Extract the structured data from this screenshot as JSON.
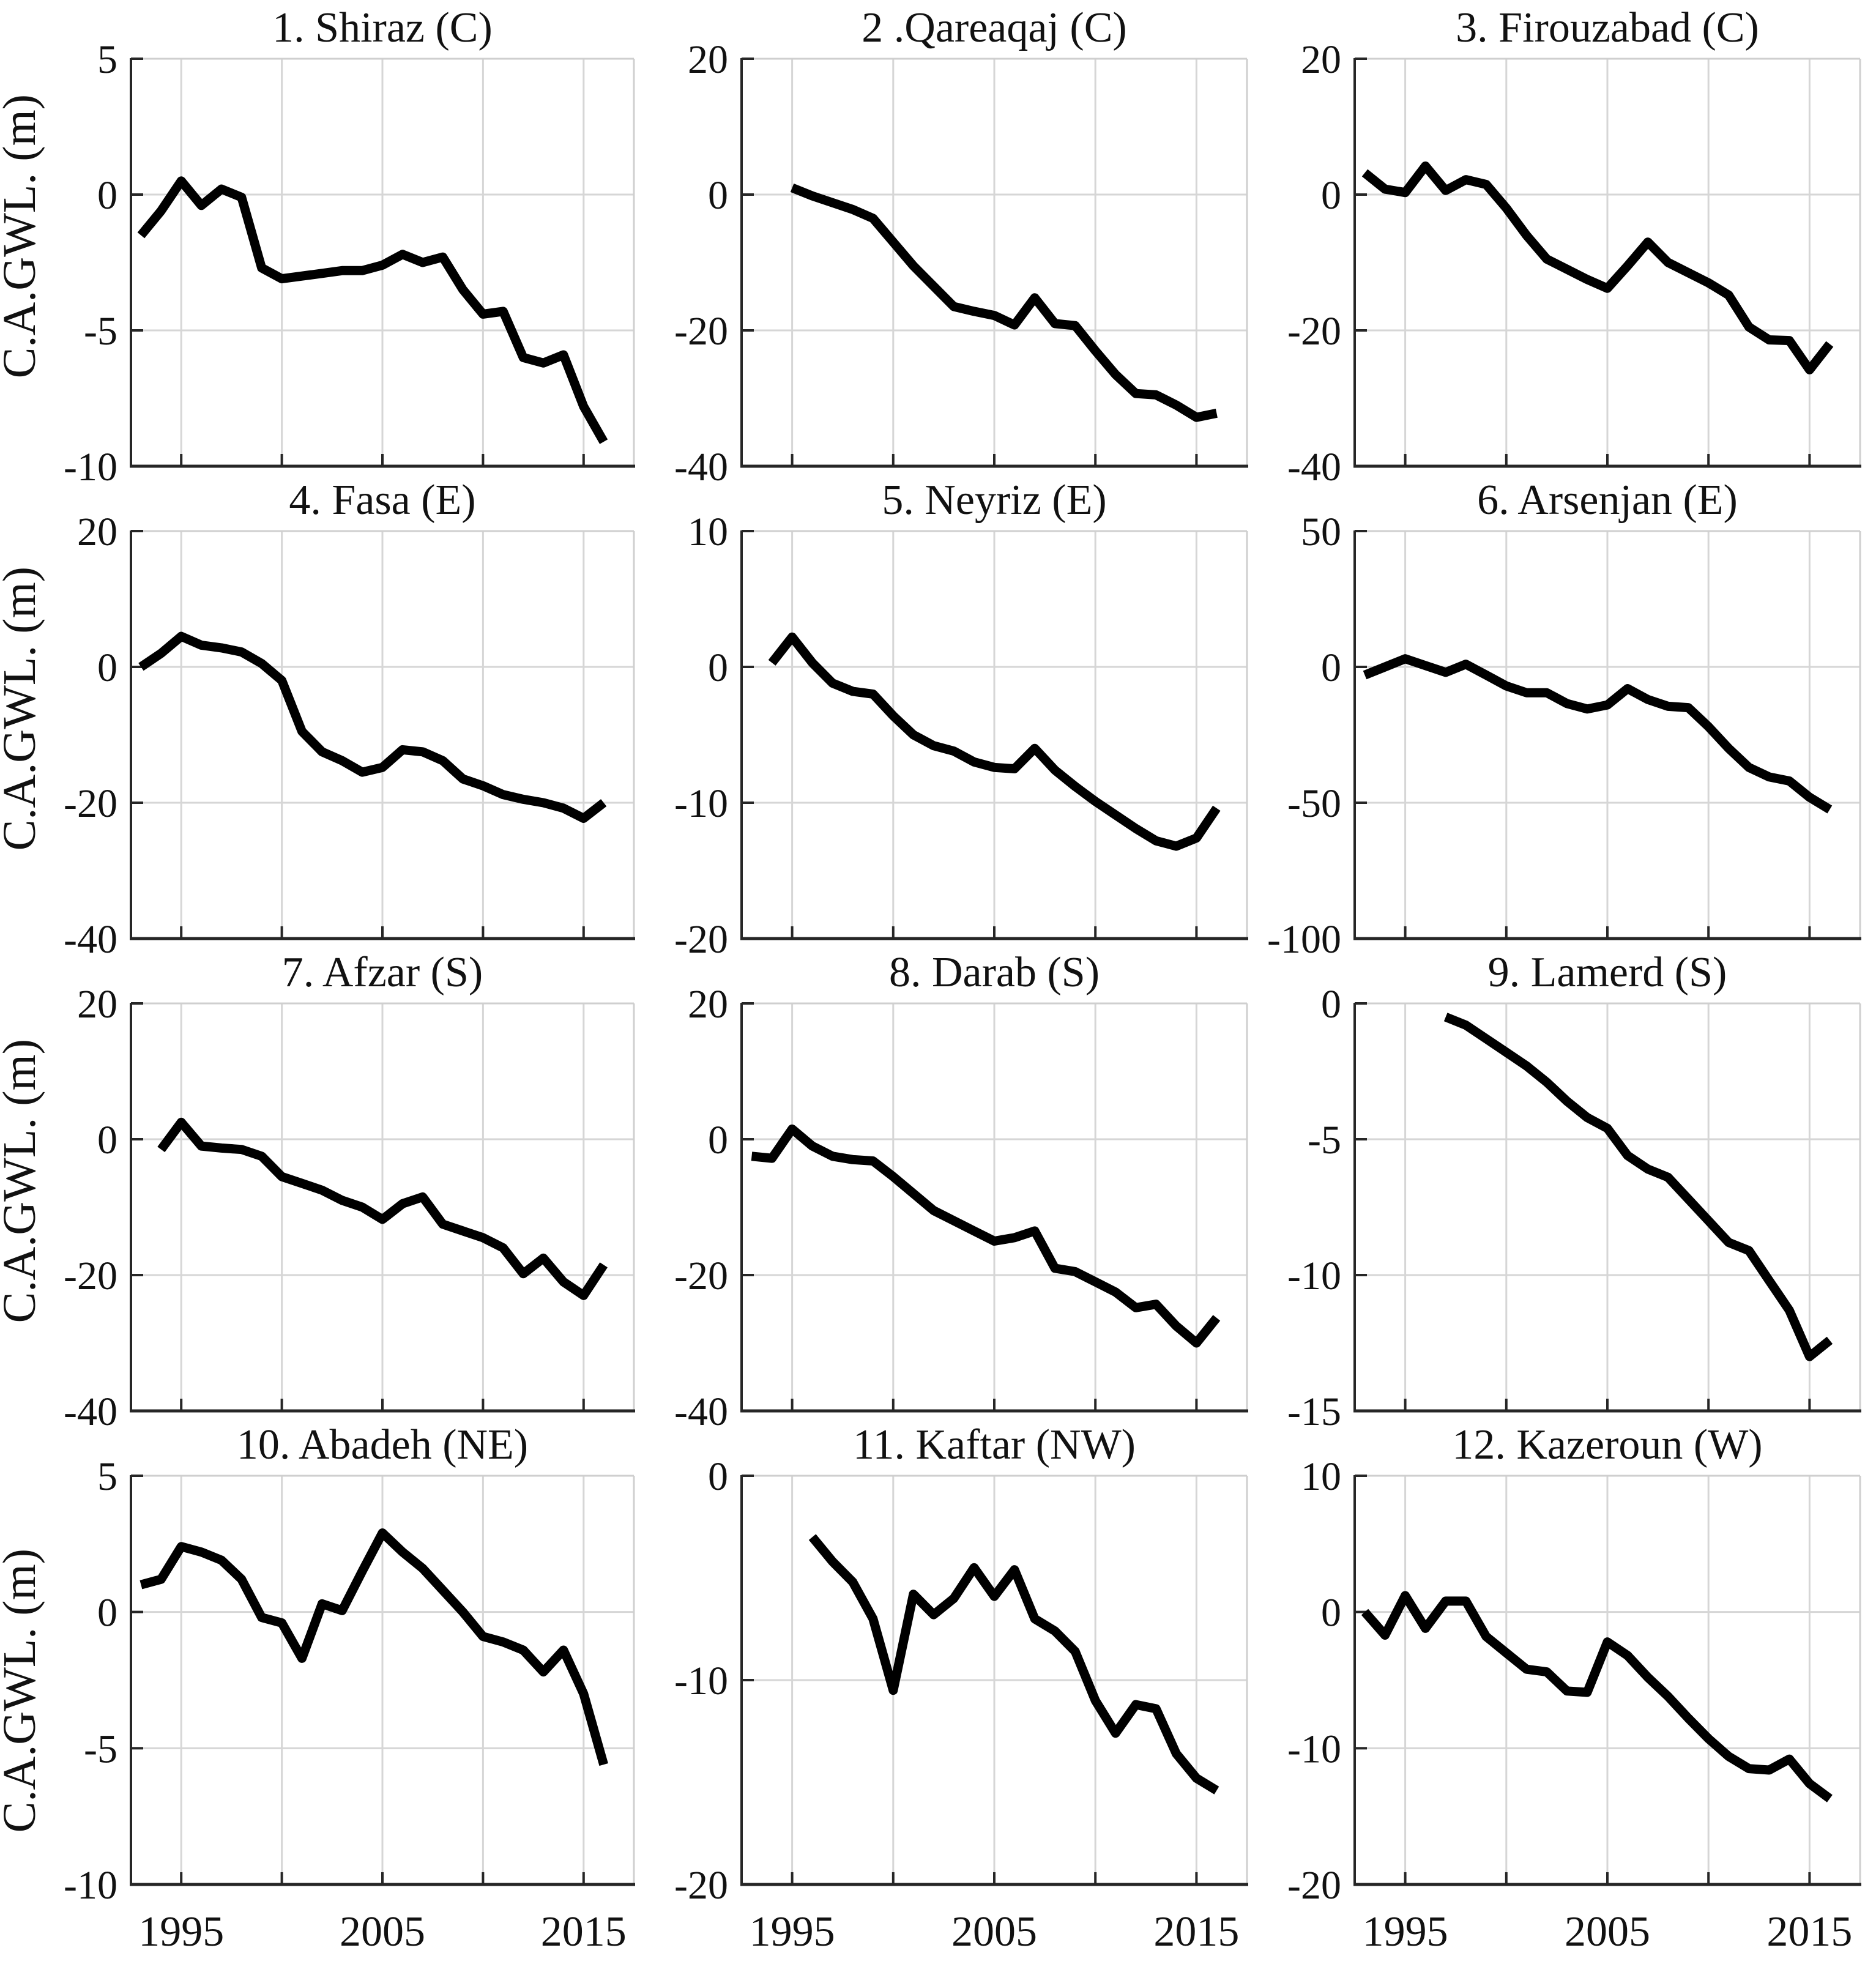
{
  "figure": {
    "ylabel": "C.A.GWL. (m)",
    "x_ticks": {
      "years": [
        1995,
        2005,
        2015
      ],
      "labels": [
        "1995",
        "2005",
        "2015"
      ]
    },
    "grid_years": [
      1995,
      2000,
      2005,
      2010,
      2015
    ],
    "xlim": [
      1992.5,
      2017.5
    ],
    "grid_on": true,
    "colors": {
      "line": "#000000",
      "grid": "#d6d6d6",
      "axis": "#262626",
      "light_spine": "#cfcfcf",
      "text": "#111111",
      "background": "#ffffff"
    }
  },
  "chart_data": [
    {
      "type": "line",
      "title": "1. Shiraz (C)",
      "region": "Shiraz",
      "zone": "C",
      "ylim": [
        -10,
        5
      ],
      "yticks": [
        5,
        0,
        -5,
        -10
      ],
      "show_ylabel": true,
      "show_xticklabels": false,
      "x": [
        1993,
        1994,
        1995,
        1996,
        1997,
        1998,
        1999,
        2000,
        2001,
        2002,
        2003,
        2004,
        2005,
        2006,
        2007,
        2008,
        2009,
        2010,
        2011,
        2012,
        2013,
        2014,
        2015,
        2016
      ],
      "y": [
        -1.5,
        -0.6,
        0.5,
        -0.4,
        0.2,
        -0.1,
        -2.7,
        -3.1,
        -3.0,
        -2.9,
        -2.8,
        -2.8,
        -2.6,
        -2.2,
        -2.5,
        -2.3,
        -3.5,
        -4.4,
        -4.3,
        -6.0,
        -6.2,
        -5.9,
        -7.8,
        -9.1
      ]
    },
    {
      "type": "line",
      "title": "2 .Qareaqaj (C)",
      "region": "Qareaqaj",
      "zone": "C",
      "ylim": [
        -40,
        20
      ],
      "yticks": [
        20,
        0,
        -20,
        -40
      ],
      "show_ylabel": false,
      "show_xticklabels": false,
      "x": [
        1995,
        1996,
        1997,
        1998,
        1999,
        2000,
        2001,
        2002,
        2003,
        2004,
        2005,
        2006,
        2007,
        2008,
        2009,
        2010,
        2011,
        2012,
        2013,
        2014,
        2015,
        2016
      ],
      "y": [
        1.0,
        -0.2,
        -1.2,
        -2.2,
        -3.5,
        -7.0,
        -10.5,
        -13.5,
        -16.5,
        -17.2,
        -17.8,
        -19.2,
        -15.2,
        -19.0,
        -19.3,
        -23.0,
        -26.5,
        -29.3,
        -29.5,
        -31.0,
        -32.8,
        -32.2
      ]
    },
    {
      "type": "line",
      "title": "3. Firouzabad (C)",
      "region": "Firouzabad",
      "zone": "C",
      "ylim": [
        -40,
        20
      ],
      "yticks": [
        20,
        0,
        -20,
        -40
      ],
      "show_ylabel": false,
      "show_xticklabels": false,
      "x": [
        1993,
        1994,
        1995,
        1996,
        1997,
        1998,
        1999,
        2000,
        2001,
        2002,
        2003,
        2004,
        2005,
        2006,
        2007,
        2008,
        2009,
        2010,
        2011,
        2012,
        2013,
        2014,
        2015,
        2016
      ],
      "y": [
        3.2,
        0.8,
        0.3,
        4.2,
        0.6,
        2.2,
        1.5,
        -2.0,
        -6.0,
        -9.5,
        -11.0,
        -12.5,
        -13.8,
        -10.5,
        -7.0,
        -10.0,
        -11.5,
        -13.0,
        -14.8,
        -19.5,
        -21.4,
        -21.5,
        -25.8,
        -22.0
      ]
    },
    {
      "type": "line",
      "title": "4. Fasa (E)",
      "region": "Fasa",
      "zone": "E",
      "ylim": [
        -40,
        20
      ],
      "yticks": [
        20,
        0,
        -20,
        -40
      ],
      "show_ylabel": true,
      "show_xticklabels": false,
      "x": [
        1993,
        1994,
        1995,
        1996,
        1997,
        1998,
        1999,
        2000,
        2001,
        2002,
        2003,
        2004,
        2005,
        2006,
        2007,
        2008,
        2009,
        2010,
        2011,
        2012,
        2013,
        2014,
        2015,
        2016
      ],
      "y": [
        0.0,
        2.0,
        4.5,
        3.2,
        2.8,
        2.2,
        0.5,
        -2.0,
        -9.5,
        -12.5,
        -13.8,
        -15.5,
        -14.8,
        -12.2,
        -12.5,
        -13.8,
        -16.5,
        -17.5,
        -18.8,
        -19.5,
        -20.0,
        -20.8,
        -22.3,
        -20.0
      ]
    },
    {
      "type": "line",
      "title": "5. Neyriz (E)",
      "region": "Neyriz",
      "zone": "E",
      "ylim": [
        -20,
        10
      ],
      "yticks": [
        10,
        0,
        -10,
        -20
      ],
      "show_ylabel": false,
      "show_xticklabels": false,
      "x": [
        1994,
        1995,
        1996,
        1997,
        1998,
        1999,
        2000,
        2001,
        2002,
        2003,
        2004,
        2005,
        2006,
        2007,
        2008,
        2009,
        2010,
        2011,
        2012,
        2013,
        2014,
        2015,
        2016
      ],
      "y": [
        0.3,
        2.2,
        0.3,
        -1.2,
        -1.8,
        -2.0,
        -3.6,
        -5.0,
        -5.8,
        -6.2,
        -7.0,
        -7.4,
        -7.5,
        -6.0,
        -7.6,
        -8.8,
        -9.9,
        -10.9,
        -11.9,
        -12.8,
        -13.2,
        -12.6,
        -10.4
      ]
    },
    {
      "type": "line",
      "title": "6. Arsenjan (E)",
      "region": "Arsenjan",
      "zone": "E",
      "ylim": [
        -100,
        50
      ],
      "yticks": [
        50,
        0,
        -50,
        -100
      ],
      "show_ylabel": false,
      "show_xticklabels": false,
      "x": [
        1993,
        1994,
        1995,
        1996,
        1997,
        1998,
        1999,
        2000,
        2001,
        2002,
        2003,
        2004,
        2005,
        2006,
        2007,
        2008,
        2009,
        2010,
        2011,
        2012,
        2013,
        2014,
        2015,
        2016
      ],
      "y": [
        -3.0,
        0.0,
        3.0,
        0.5,
        -2.0,
        1.0,
        -3.0,
        -7.0,
        -9.5,
        -9.5,
        -13.5,
        -15.5,
        -14.0,
        -8.0,
        -12.0,
        -14.5,
        -15.0,
        -22.0,
        -30.0,
        -37.0,
        -40.5,
        -42.0,
        -48.0,
        -52.5
      ]
    },
    {
      "type": "line",
      "title": "7. Afzar (S)",
      "region": "Afzar",
      "zone": "S",
      "ylim": [
        -40,
        20
      ],
      "yticks": [
        20,
        0,
        -20,
        -40
      ],
      "show_ylabel": true,
      "show_xticklabels": false,
      "x": [
        1994,
        1995,
        1996,
        1997,
        1998,
        1999,
        2000,
        2001,
        2002,
        2003,
        2004,
        2005,
        2006,
        2007,
        2008,
        2009,
        2010,
        2011,
        2012,
        2013,
        2014,
        2015,
        2016
      ],
      "y": [
        -1.5,
        2.5,
        -1.0,
        -1.3,
        -1.5,
        -2.5,
        -5.5,
        -6.5,
        -7.5,
        -9.0,
        -10.0,
        -11.8,
        -9.5,
        -8.5,
        -12.5,
        -13.5,
        -14.5,
        -16.0,
        -19.8,
        -17.5,
        -21.0,
        -23.0,
        -18.5
      ]
    },
    {
      "type": "line",
      "title": "8. Darab (S)",
      "region": "Darab",
      "zone": "S",
      "ylim": [
        -40,
        20
      ],
      "yticks": [
        20,
        0,
        -20,
        -40
      ],
      "show_ylabel": false,
      "show_xticklabels": false,
      "x": [
        1993,
        1994,
        1995,
        1996,
        1997,
        1998,
        1999,
        2000,
        2001,
        2002,
        2003,
        2004,
        2005,
        2006,
        2007,
        2008,
        2009,
        2010,
        2011,
        2012,
        2013,
        2014,
        2015,
        2016
      ],
      "y": [
        -2.5,
        -2.8,
        1.5,
        -1.0,
        -2.5,
        -3.0,
        -3.2,
        -5.5,
        -8.0,
        -10.5,
        -12.0,
        -13.5,
        -15.0,
        -14.5,
        -13.5,
        -19.0,
        -19.5,
        -21.0,
        -22.5,
        -24.8,
        -24.3,
        -27.5,
        -30.0,
        -26.3
      ]
    },
    {
      "type": "line",
      "title": "9. Lamerd (S)",
      "region": "Lamerd",
      "zone": "S",
      "ylim": [
        -15,
        0
      ],
      "yticks": [
        0,
        -5,
        -10,
        -15
      ],
      "show_ylabel": false,
      "show_xticklabels": false,
      "x": [
        1997,
        1998,
        1999,
        2000,
        2001,
        2002,
        2003,
        2004,
        2005,
        2006,
        2007,
        2008,
        2009,
        2010,
        2011,
        2012,
        2013,
        2014,
        2015,
        2016
      ],
      "y": [
        -0.5,
        -0.8,
        -1.3,
        -1.8,
        -2.3,
        -2.9,
        -3.6,
        -4.2,
        -4.6,
        -5.6,
        -6.1,
        -6.4,
        -7.2,
        -8.0,
        -8.8,
        -9.1,
        -10.2,
        -11.3,
        -13.0,
        -12.4
      ]
    },
    {
      "type": "line",
      "title": "10. Abadeh (NE)",
      "region": "Abadeh",
      "zone": "NE",
      "ylim": [
        -10,
        5
      ],
      "yticks": [
        5,
        0,
        -5,
        -10
      ],
      "show_ylabel": true,
      "show_xticklabels": true,
      "x": [
        1993,
        1994,
        1995,
        1996,
        1997,
        1998,
        1999,
        2000,
        2001,
        2002,
        2003,
        2004,
        2005,
        2006,
        2007,
        2008,
        2009,
        2010,
        2011,
        2012,
        2013,
        2014,
        2015,
        2016
      ],
      "y": [
        1.0,
        1.2,
        2.4,
        2.2,
        1.9,
        1.2,
        -0.2,
        -0.4,
        -1.7,
        0.3,
        0.05,
        1.5,
        2.9,
        2.2,
        1.6,
        0.8,
        0.0,
        -0.9,
        -1.1,
        -1.4,
        -2.2,
        -1.4,
        -3.0,
        -5.6
      ]
    },
    {
      "type": "line",
      "title": "11. Kaftar (NW)",
      "region": "Kaftar",
      "zone": "NW",
      "ylim": [
        -20,
        0
      ],
      "yticks": [
        0,
        -10,
        -20
      ],
      "show_ylabel": false,
      "show_xticklabels": true,
      "x": [
        1996,
        1997,
        1998,
        1999,
        2000,
        2001,
        2002,
        2003,
        2004,
        2005,
        2006,
        2007,
        2008,
        2009,
        2010,
        2011,
        2012,
        2013,
        2014,
        2015,
        2016
      ],
      "y": [
        -3.0,
        -4.2,
        -5.2,
        -7.0,
        -10.5,
        -5.8,
        -6.8,
        -6.0,
        -4.5,
        -5.9,
        -4.6,
        -7.0,
        -7.6,
        -8.6,
        -11.0,
        -12.6,
        -11.2,
        -11.4,
        -13.6,
        -14.8,
        -15.4
      ]
    },
    {
      "type": "line",
      "title": "12. Kazeroun (W)",
      "region": "Kazeroun",
      "zone": "W",
      "ylim": [
        -20,
        10
      ],
      "yticks": [
        10,
        0,
        -10,
        -20
      ],
      "show_ylabel": false,
      "show_xticklabels": true,
      "x": [
        1993,
        1994,
        1995,
        1996,
        1997,
        1998,
        1999,
        2000,
        2001,
        2002,
        2003,
        2004,
        2005,
        2006,
        2007,
        2008,
        2009,
        2010,
        2011,
        2012,
        2013,
        2014,
        2015,
        2016
      ],
      "y": [
        0.0,
        -1.7,
        1.2,
        -1.2,
        0.8,
        0.8,
        -1.8,
        -3.0,
        -4.2,
        -4.4,
        -5.8,
        -5.9,
        -2.2,
        -3.2,
        -4.8,
        -6.2,
        -7.8,
        -9.3,
        -10.6,
        -11.5,
        -11.6,
        -10.8,
        -12.6,
        -13.7
      ]
    }
  ]
}
